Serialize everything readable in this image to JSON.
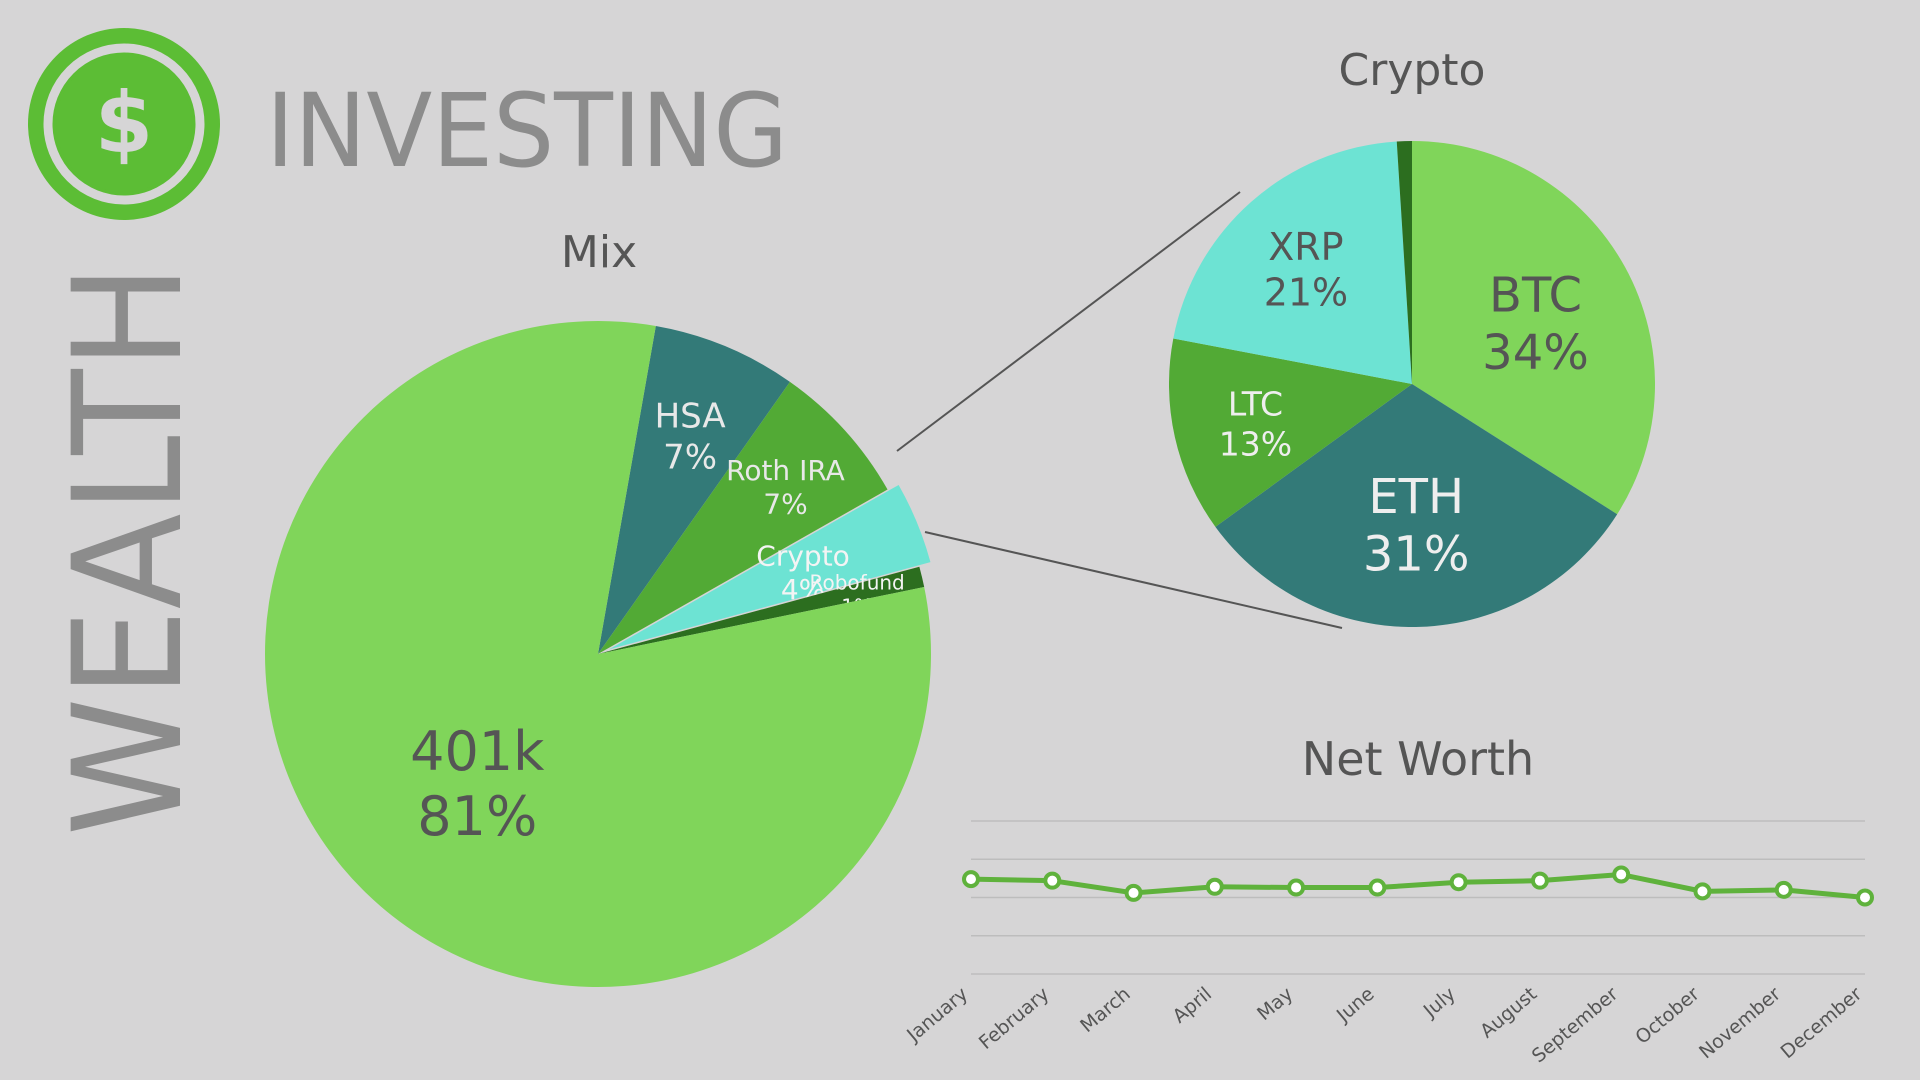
{
  "brand": {
    "word_vertical": "WEALTH",
    "word_main": "INVESTING",
    "logo_icon": "dollar-sign-icon",
    "logo_glyph": "$",
    "logo_color": "#5cbd35"
  },
  "colors": {
    "light_green": "#80d55a",
    "dark_teal": "#337a78",
    "mid_green": "#52aa35",
    "aqua": "#6de3d3",
    "dark_green": "#2c6e1f",
    "line_green": "#5fb23c",
    "connector": "#555555",
    "grid": "#bdbdbd"
  },
  "chart_data": [
    {
      "type": "pie",
      "title": "Mix",
      "slices": [
        {
          "label": "HSA",
          "value": 7,
          "value_label": "7%",
          "color": "#337a78"
        },
        {
          "label": "Roth IRA",
          "value": 7,
          "value_label": "7%",
          "color": "#52aa35"
        },
        {
          "label": "Crypto",
          "value": 4,
          "value_label": "4%",
          "color": "#6de3d3"
        },
        {
          "label": "Robofund",
          "value": 1,
          "value_label": "1%",
          "color": "#2c6e1f"
        },
        {
          "label": "401k",
          "value": 81,
          "value_label": "81%",
          "color": "#80d55a"
        }
      ],
      "exploded_slice": "Crypto"
    },
    {
      "type": "pie",
      "title": "Crypto",
      "slices": [
        {
          "label": "BTC",
          "value": 34,
          "value_label": "34%",
          "color": "#80d55a"
        },
        {
          "label": "ETH",
          "value": 31,
          "value_label": "31%",
          "color": "#337a78"
        },
        {
          "label": "LTC",
          "value": 13,
          "value_label": "13%",
          "color": "#52aa35"
        },
        {
          "label": "XRP",
          "value": 21,
          "value_label": "21%",
          "color": "#6de3d3"
        },
        {
          "label": "",
          "value": 1,
          "value_label": "",
          "color": "#2c6e1f"
        }
      ]
    },
    {
      "type": "line",
      "title": "Net Worth",
      "categories": [
        "January",
        "February",
        "March",
        "April",
        "May",
        "June",
        "July",
        "August",
        "September",
        "October",
        "November",
        "December"
      ],
      "series": [
        {
          "values": [
            62,
            61,
            53,
            57,
            56.5,
            56.5,
            60,
            61,
            65,
            54,
            55,
            50
          ],
          "color": "#5fb23c"
        }
      ],
      "ylim": [
        0,
        100
      ],
      "grid": true,
      "gridlines": 5,
      "ylabel": "",
      "xlabel": ""
    }
  ]
}
